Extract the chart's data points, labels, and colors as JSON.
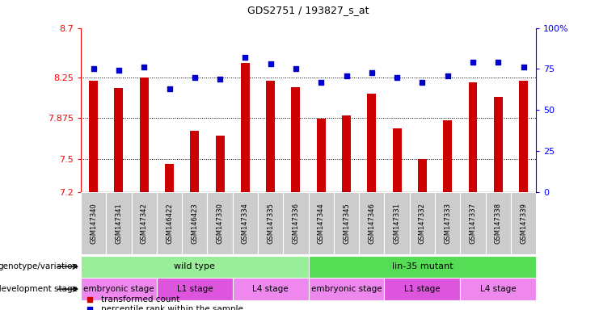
{
  "title": "GDS2751 / 193827_s_at",
  "samples": [
    "GSM147340",
    "GSM147341",
    "GSM147342",
    "GSM146422",
    "GSM146423",
    "GSM147330",
    "GSM147334",
    "GSM147335",
    "GSM147336",
    "GSM147344",
    "GSM147345",
    "GSM147346",
    "GSM147331",
    "GSM147332",
    "GSM147333",
    "GSM147337",
    "GSM147338",
    "GSM147339"
  ],
  "bar_values": [
    8.22,
    8.15,
    8.25,
    7.46,
    7.76,
    7.72,
    8.38,
    8.22,
    8.16,
    7.87,
    7.9,
    8.1,
    7.78,
    7.5,
    7.86,
    8.2,
    8.07,
    8.22
  ],
  "percentile_values": [
    75,
    74,
    76,
    63,
    70,
    69,
    82,
    78,
    75,
    67,
    71,
    73,
    70,
    67,
    71,
    79,
    79,
    76
  ],
  "bar_color": "#cc0000",
  "percentile_color": "#0000cc",
  "ymin": 7.2,
  "ymax": 8.7,
  "yticks": [
    7.2,
    7.5,
    7.875,
    8.25,
    8.7
  ],
  "ytick_labels": [
    "7.2",
    "7.5",
    "7.875",
    "8.25",
    "8.7"
  ],
  "y2min": 0,
  "y2max": 100,
  "y2ticks": [
    0,
    25,
    50,
    75,
    100
  ],
  "y2tick_labels": [
    "0",
    "25",
    "50",
    "75",
    "100%"
  ],
  "grid_values": [
    7.5,
    7.875,
    8.25
  ],
  "genotype_groups": [
    {
      "label": "wild type",
      "start": 0,
      "end": 9,
      "color": "#99ee99"
    },
    {
      "label": "lin-35 mutant",
      "start": 9,
      "end": 18,
      "color": "#55dd55"
    }
  ],
  "stage_groups": [
    {
      "label": "embryonic stage",
      "start": 0,
      "end": 3,
      "color": "#ee88ee"
    },
    {
      "label": "L1 stage",
      "start": 3,
      "end": 6,
      "color": "#dd55dd"
    },
    {
      "label": "L4 stage",
      "start": 6,
      "end": 9,
      "color": "#ee88ee"
    },
    {
      "label": "embryonic stage",
      "start": 9,
      "end": 12,
      "color": "#ee88ee"
    },
    {
      "label": "L1 stage",
      "start": 12,
      "end": 15,
      "color": "#dd55dd"
    },
    {
      "label": "L4 stage",
      "start": 15,
      "end": 18,
      "color": "#ee88ee"
    }
  ],
  "legend_items": [
    {
      "label": "transformed count",
      "color": "#cc0000"
    },
    {
      "label": "percentile rank within the sample",
      "color": "#0000cc"
    }
  ],
  "row_labels": [
    "genotype/variation",
    "development stage"
  ],
  "xticklabel_bg": "#cccccc",
  "plot_bg": "#ffffff",
  "bar_width": 0.35
}
